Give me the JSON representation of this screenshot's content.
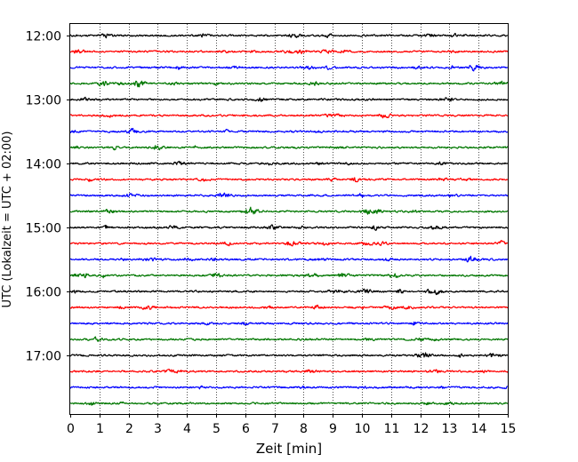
{
  "chart_data": {
    "type": "line",
    "title": "",
    "xlabel": "Zeit  [min]",
    "ylabel": "UTC (Lokalzeit = UTC + 02:00)",
    "xlim": [
      0,
      15
    ],
    "x_ticks": [
      "0",
      "1",
      "2",
      "3",
      "4",
      "5",
      "6",
      "7",
      "8",
      "9",
      "10",
      "11",
      "12",
      "13",
      "14",
      "15"
    ],
    "y_ticks": [
      "12:00",
      "13:00",
      "14:00",
      "15:00",
      "16:00",
      "17:00"
    ],
    "grid": "vertical dotted at each minute",
    "trace_interval_min": 15,
    "trace_start": "12:00",
    "trace_count": 24,
    "series_colors": [
      "#000000",
      "#ff0000",
      "#0000ff",
      "#007700"
    ],
    "series": [
      {
        "start": "12:00",
        "color": "#000000"
      },
      {
        "start": "12:15",
        "color": "#ff0000"
      },
      {
        "start": "12:30",
        "color": "#0000ff"
      },
      {
        "start": "12:45",
        "color": "#007700"
      },
      {
        "start": "13:00",
        "color": "#000000"
      },
      {
        "start": "13:15",
        "color": "#ff0000"
      },
      {
        "start": "13:30",
        "color": "#0000ff"
      },
      {
        "start": "13:45",
        "color": "#007700"
      },
      {
        "start": "14:00",
        "color": "#000000"
      },
      {
        "start": "14:15",
        "color": "#ff0000"
      },
      {
        "start": "14:30",
        "color": "#0000ff"
      },
      {
        "start": "14:45",
        "color": "#007700"
      },
      {
        "start": "15:00",
        "color": "#000000"
      },
      {
        "start": "15:15",
        "color": "#ff0000"
      },
      {
        "start": "15:30",
        "color": "#0000ff"
      },
      {
        "start": "15:45",
        "color": "#007700"
      },
      {
        "start": "16:00",
        "color": "#000000"
      },
      {
        "start": "16:15",
        "color": "#ff0000"
      },
      {
        "start": "16:30",
        "color": "#0000ff"
      },
      {
        "start": "16:45",
        "color": "#007700"
      },
      {
        "start": "17:00",
        "color": "#000000"
      },
      {
        "start": "17:15",
        "color": "#ff0000"
      },
      {
        "start": "17:30",
        "color": "#0000ff"
      },
      {
        "start": "17:45",
        "color": "#007700"
      }
    ]
  }
}
